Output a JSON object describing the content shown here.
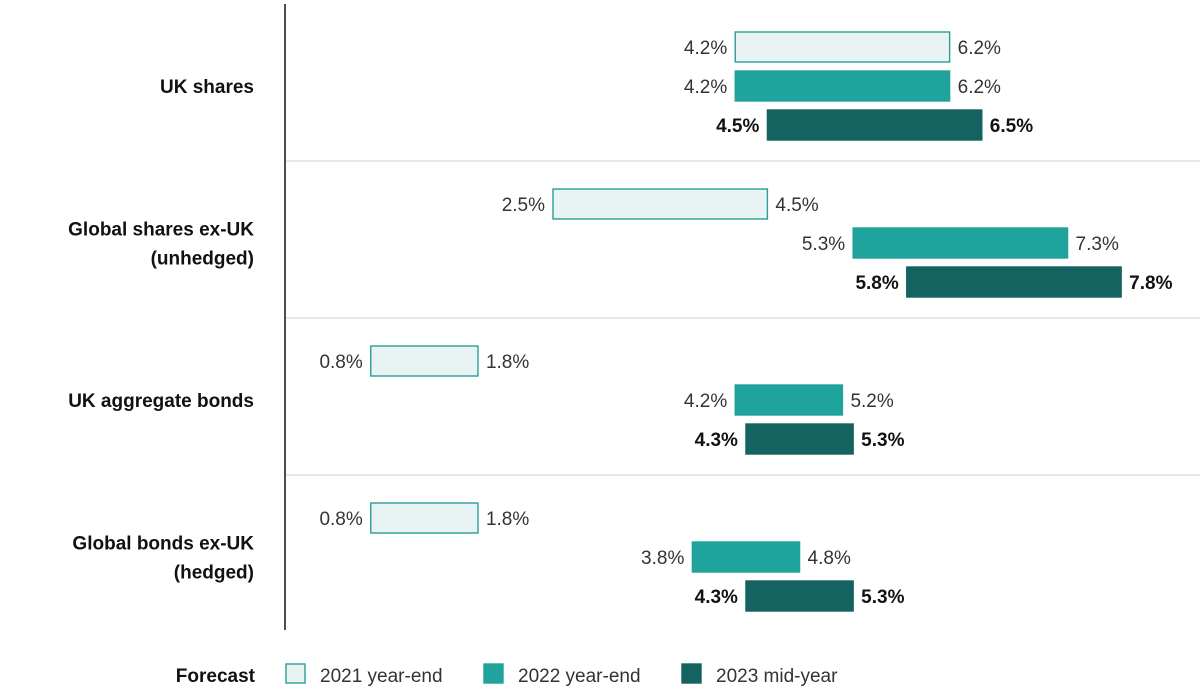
{
  "chart_data": {
    "type": "range-bar",
    "title": "",
    "legend_title": "Forecast",
    "legend_position": "bottom",
    "categories": [
      [
        "UK shares"
      ],
      [
        "Global shares ex-UK",
        "(unhedged)"
      ],
      [
        "UK aggregate bonds"
      ],
      [
        "Global bonds ex-UK",
        "(hedged)"
      ]
    ],
    "series": [
      {
        "name": "2021 year-end",
        "color": "#e8f4f3",
        "stroke": "#2a9d96",
        "bold_labels": false,
        "ranges": [
          [
            4.2,
            6.2
          ],
          [
            2.5,
            4.5
          ],
          [
            0.8,
            1.8
          ],
          [
            0.8,
            1.8
          ]
        ],
        "labels": [
          [
            "4.2%",
            "6.2%"
          ],
          [
            "2.5%",
            "4.5%"
          ],
          [
            "0.8%",
            "1.8%"
          ],
          [
            "0.8%",
            "1.8%"
          ]
        ]
      },
      {
        "name": "2022 year-end",
        "color": "#1fa39c",
        "stroke": "#1fa39c",
        "bold_labels": false,
        "ranges": [
          [
            4.2,
            6.2
          ],
          [
            5.3,
            7.3
          ],
          [
            4.2,
            5.2
          ],
          [
            3.8,
            4.8
          ]
        ],
        "labels": [
          [
            "4.2%",
            "6.2%"
          ],
          [
            "5.3%",
            "7.3%"
          ],
          [
            "4.2%",
            "5.2%"
          ],
          [
            "3.8%",
            "4.8%"
          ]
        ]
      },
      {
        "name": "2023 mid-year",
        "color": "#146360",
        "stroke": "#146360",
        "bold_labels": true,
        "ranges": [
          [
            4.5,
            6.5
          ],
          [
            5.8,
            7.8
          ],
          [
            4.3,
            5.3
          ],
          [
            4.3,
            5.3
          ]
        ],
        "labels": [
          [
            "4.5%",
            "6.5%"
          ],
          [
            "5.8%",
            "7.8%"
          ],
          [
            "4.3%",
            "5.3%"
          ],
          [
            "4.3%",
            "5.3%"
          ]
        ]
      }
    ],
    "xlim": [
      0,
      8.5
    ],
    "grid": false,
    "xlabel": "",
    "ylabel": ""
  }
}
